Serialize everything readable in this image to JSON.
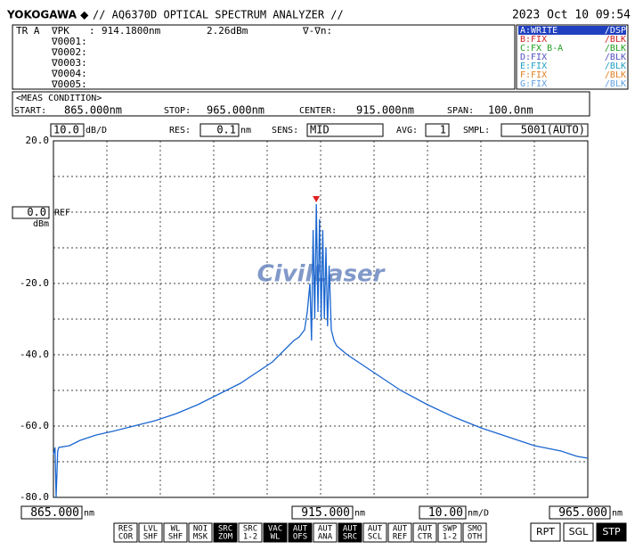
{
  "header": {
    "brand": "YOKOGAWA ◆",
    "title": "// AQ6370D OPTICAL SPECTRUM ANALYZER //",
    "datetime": "2023 Oct 10 09:54"
  },
  "marker": {
    "trace": "TR A",
    "label": "∇PK",
    "sep": ":",
    "wavelength": "914.1800nm",
    "level": "2.26dBm",
    "delta": "∇-∇n:",
    "rows": [
      "∇0001:",
      "∇0002:",
      "∇0003:",
      "∇0004:",
      "∇0005:"
    ]
  },
  "traces": [
    {
      "label": "A:WRITE",
      "status": "/DSP",
      "color": "#ffffff",
      "active": true
    },
    {
      "label": "B:FIX",
      "status": "/BLK",
      "color": "#d02020",
      "active": false
    },
    {
      "label": "C:FX B-A",
      "status": "/BLK",
      "color": "#20a020",
      "active": false
    },
    {
      "label": "D:FIX",
      "status": "/BLK",
      "color": "#5050c0",
      "active": false
    },
    {
      "label": "E:FIX",
      "status": "/BLK",
      "color": "#20a0c0",
      "active": false
    },
    {
      "label": "F:FIX",
      "status": "/BLK",
      "color": "#e08020",
      "active": false
    },
    {
      "label": "G:FIX",
      "status": "/BLK",
      "color": "#60a0e0",
      "active": false
    }
  ],
  "meas_condition": {
    "title": "<MEAS CONDITION>",
    "start_label": "START:",
    "start": "865.000nm",
    "stop_label": "STOP:",
    "stop": "965.000nm",
    "center_label": "CENTER:",
    "center": "915.000nm",
    "span_label": "SPAN:",
    "span": "100.0nm"
  },
  "settings": {
    "scale": "10.0",
    "scale_unit": "dB/D",
    "res_label": "RES:",
    "res": "0.1",
    "res_unit": "nm",
    "sens_label": "SENS:",
    "sens": "MID",
    "avg_label": "AVG:",
    "avg": "1",
    "smpl_label": "SMPL:",
    "smpl": "5001(AUTO)"
  },
  "ref": {
    "value": "0.0",
    "label": "REF",
    "unit": "dBm"
  },
  "bottom": {
    "start": "865.000",
    "start_unit": "nm",
    "center": "915.000",
    "center_unit": "nm",
    "span_div": "10.00",
    "span_div_unit": "nm/D",
    "stop": "965.000",
    "stop_unit": "nm"
  },
  "watermark": "CivilLaser",
  "buttons": [
    {
      "lines": [
        "RES",
        "COR"
      ],
      "active": false
    },
    {
      "lines": [
        "LVL",
        "SHF"
      ],
      "active": false
    },
    {
      "lines": [
        "WL",
        "SHF"
      ],
      "active": false
    },
    {
      "lines": [
        "NOI",
        "MSK"
      ],
      "active": false
    },
    {
      "lines": [
        "SRC",
        "ZOM"
      ],
      "active": true
    },
    {
      "lines": [
        "SRC",
        "1-2"
      ],
      "active": false
    },
    {
      "lines": [
        "VAC",
        "WL"
      ],
      "active": true
    },
    {
      "lines": [
        "AUT",
        "OFS"
      ],
      "active": true
    },
    {
      "lines": [
        "AUT",
        "ANA"
      ],
      "active": false
    },
    {
      "lines": [
        "AUT",
        "SRC"
      ],
      "active": true
    },
    {
      "lines": [
        "AUT",
        "SCL"
      ],
      "active": false
    },
    {
      "lines": [
        "AUT",
        "REF"
      ],
      "active": false
    },
    {
      "lines": [
        "AUT",
        "CTR"
      ],
      "active": false
    },
    {
      "lines": [
        "SWP",
        "1-2"
      ],
      "active": false
    },
    {
      "lines": [
        "SMO",
        "OTH"
      ],
      "active": false
    }
  ],
  "run_buttons": [
    {
      "label": "RPT",
      "active": false
    },
    {
      "label": "SGL",
      "active": false
    },
    {
      "label": "STP",
      "active": true
    }
  ],
  "chart_data": {
    "type": "line",
    "x": [
      865,
      865.3,
      865.5,
      865.8,
      866,
      868,
      870,
      873,
      876,
      880,
      884,
      888,
      892,
      896,
      900,
      903,
      906,
      908,
      909,
      910,
      911,
      911.5,
      912,
      912.5,
      913,
      913.3,
      913.6,
      913.9,
      914.2,
      914.5,
      914.8,
      915.1,
      915.4,
      915.7,
      916,
      916.3,
      916.6,
      917,
      917.5,
      918,
      920,
      923,
      926,
      930,
      935,
      940,
      945,
      950,
      955,
      960,
      963,
      965
    ],
    "series": [
      {
        "color": "#1a66d0",
        "values": [
          -68,
          -66,
          -80,
          -67,
          -66,
          -65.5,
          -64,
          -62.5,
          -61.5,
          -60,
          -58.5,
          -56.5,
          -54,
          -51,
          -48,
          -45,
          -42,
          -39,
          -37.5,
          -36,
          -35,
          -34,
          -33,
          -28,
          -20,
          -36,
          -5,
          -30,
          2.26,
          -28,
          -2,
          -30,
          -5,
          -30,
          -10,
          -32,
          -15,
          -33,
          -36,
          -37.5,
          -40,
          -43,
          -46,
          -50,
          -54,
          -57.5,
          -60.5,
          -63,
          -65.5,
          -67,
          -68.5,
          -69
        ]
      }
    ],
    "peak": {
      "x": 914.18,
      "y": 2.26,
      "color": "#e02020"
    },
    "xlim": [
      865,
      965
    ],
    "ylim": [
      -80,
      20
    ],
    "xticks": [
      865,
      875,
      885,
      895,
      905,
      915,
      925,
      935,
      945,
      955,
      965
    ],
    "yticks": [
      {
        "value": 20,
        "label": "20.0"
      },
      10,
      0,
      -10,
      {
        "value": -20,
        "label": "-20.0"
      },
      -30,
      {
        "value": -40,
        "label": "-40.0"
      },
      -50,
      {
        "value": -60,
        "label": "-60.0"
      },
      -70,
      {
        "value": -80,
        "label": "-80.0"
      }
    ],
    "grid": true
  }
}
